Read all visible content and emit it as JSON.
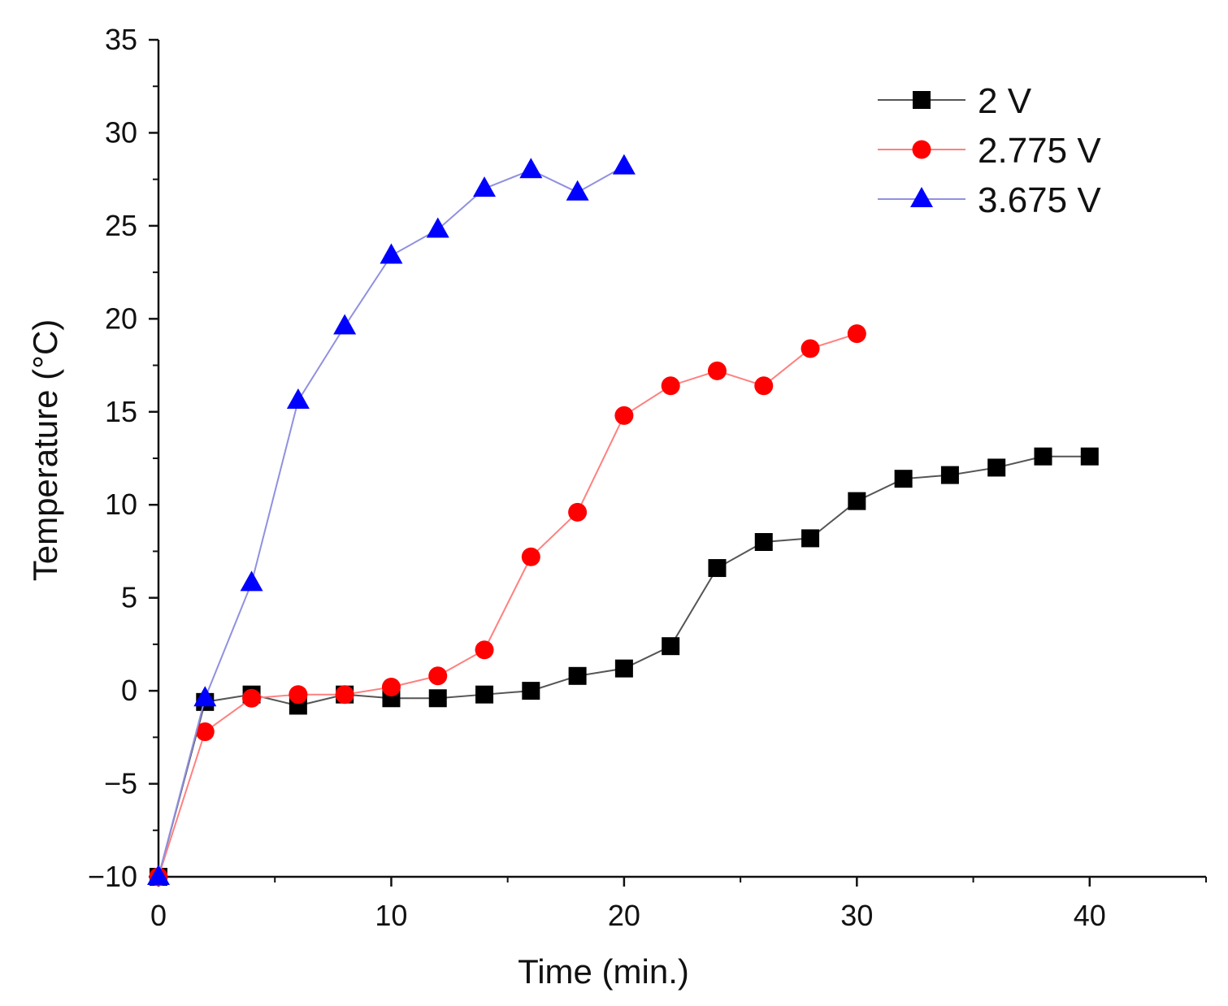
{
  "chart_data": {
    "type": "line",
    "title": "",
    "xlabel": "Time (min.)",
    "ylabel": "Temperature (°C)",
    "xlim": [
      0,
      45
    ],
    "ylim": [
      -10,
      35
    ],
    "xticks": [
      0,
      10,
      20,
      30,
      40
    ],
    "xtick_labels": [
      "0",
      "10",
      "20",
      "30",
      "40"
    ],
    "yticks": [
      -10,
      -5,
      0,
      5,
      10,
      15,
      20,
      25,
      30,
      35
    ],
    "ytick_labels": [
      "−10",
      "−5",
      "0",
      "5",
      "10",
      "15",
      "20",
      "25",
      "30",
      "35"
    ],
    "grid": false,
    "legend_position": "top-right",
    "series": [
      {
        "name": "2 V",
        "color": "#000000",
        "line_color": "#555555",
        "marker": "square",
        "x": [
          0,
          2,
          4,
          6,
          8,
          10,
          12,
          14,
          16,
          18,
          20,
          22,
          24,
          26,
          28,
          30,
          32,
          34,
          36,
          38,
          40
        ],
        "y": [
          -10,
          -0.6,
          -0.2,
          -0.8,
          -0.2,
          -0.4,
          -0.4,
          -0.2,
          0,
          0.8,
          1.2,
          2.4,
          6.6,
          8,
          8.2,
          10.2,
          11.4,
          11.6,
          12,
          12.6,
          12.6
        ]
      },
      {
        "name": "2.775 V",
        "color": "#ff0000",
        "line_color": "#ff8080",
        "marker": "circle",
        "x": [
          0,
          2,
          4,
          6,
          8,
          10,
          12,
          14,
          16,
          18,
          20,
          22,
          24,
          26,
          28,
          30
        ],
        "y": [
          -10,
          -2.2,
          -0.4,
          -0.2,
          -0.2,
          0.2,
          0.8,
          2.2,
          7.2,
          9.6,
          14.8,
          16.4,
          17.2,
          16.4,
          18.4,
          19.2
        ]
      },
      {
        "name": "3.675 V",
        "color": "#0000ff",
        "line_color": "#9090e0",
        "marker": "triangle",
        "x": [
          0,
          2,
          4,
          6,
          8,
          10,
          12,
          14,
          16,
          18,
          20
        ],
        "y": [
          -10,
          -0.4,
          5.8,
          15.6,
          19.6,
          23.4,
          24.8,
          27,
          28,
          26.8,
          28.2
        ]
      }
    ]
  }
}
